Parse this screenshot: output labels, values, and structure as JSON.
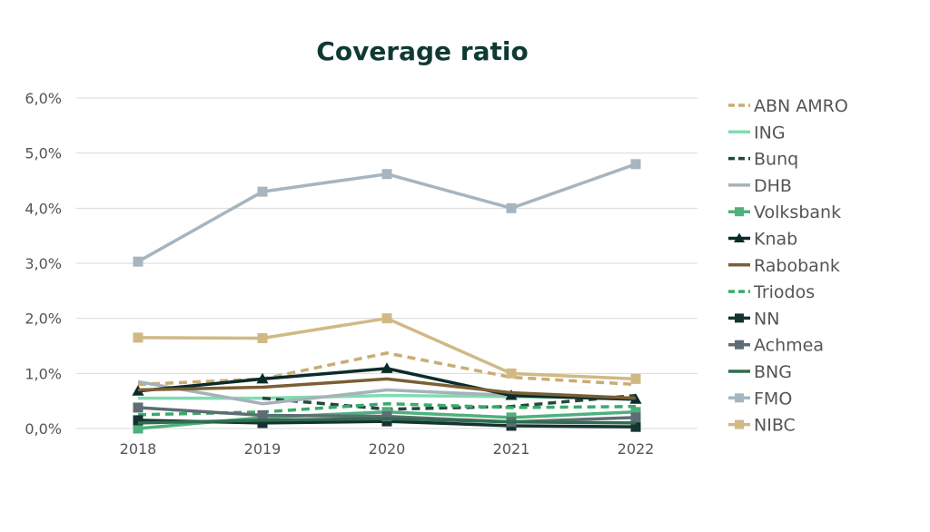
{
  "chart_data": {
    "type": "line",
    "title": "Coverage ratio",
    "xlabel": "",
    "ylabel": "",
    "categories": [
      "2018",
      "2019",
      "2020",
      "2021",
      "2022"
    ],
    "ylim": [
      0,
      6
    ],
    "yticks": [
      "0,0%",
      "1,0%",
      "2,0%",
      "3,0%",
      "4,0%",
      "5,0%",
      "6,0%"
    ],
    "grid": true,
    "legend_position": "right",
    "series": [
      {
        "name": "ABN AMRO",
        "color": "#c8ad72",
        "dash": true,
        "marker": "none",
        "values": [
          0.8,
          0.9,
          1.37,
          0.93,
          0.8
        ]
      },
      {
        "name": "ING",
        "color": "#7fdcb0",
        "dash": false,
        "marker": "none",
        "values": [
          0.55,
          0.55,
          0.6,
          0.58,
          0.55
        ]
      },
      {
        "name": "Bunq",
        "color": "#24473f",
        "dash": true,
        "marker": "none",
        "values": [
          null,
          0.55,
          0.35,
          0.4,
          0.6
        ]
      },
      {
        "name": "DHB",
        "color": "#a7b2b8",
        "dash": false,
        "marker": "none",
        "values": [
          0.85,
          0.45,
          0.7,
          0.6,
          0.55
        ]
      },
      {
        "name": "Volksbank",
        "color": "#4fb07d",
        "dash": false,
        "marker": "square",
        "values": [
          0.0,
          0.2,
          0.3,
          0.2,
          0.3
        ]
      },
      {
        "name": "Knab",
        "color": "#0b2b2a",
        "dash": false,
        "marker": "triangle",
        "values": [
          0.68,
          0.9,
          1.09,
          0.6,
          0.53
        ]
      },
      {
        "name": "Rabobank",
        "color": "#7a5f36",
        "dash": false,
        "marker": "none",
        "values": [
          0.7,
          0.75,
          0.9,
          0.65,
          0.55
        ]
      },
      {
        "name": "Triodos",
        "color": "#3aaa6a",
        "dash": true,
        "marker": "none",
        "values": [
          0.25,
          0.3,
          0.45,
          0.38,
          0.4
        ]
      },
      {
        "name": "NN",
        "color": "#163232",
        "dash": false,
        "marker": "square",
        "values": [
          0.15,
          0.1,
          0.13,
          0.05,
          0.03
        ]
      },
      {
        "name": "Achmea",
        "color": "#5f6c75",
        "dash": false,
        "marker": "square",
        "values": [
          0.38,
          0.24,
          0.22,
          0.12,
          0.2
        ]
      },
      {
        "name": "BNG",
        "color": "#2f6e4c",
        "dash": false,
        "marker": "none",
        "values": [
          0.1,
          0.15,
          0.18,
          0.12,
          0.1
        ]
      },
      {
        "name": "FMO",
        "color": "#a6b5bf",
        "dash": false,
        "marker": "square",
        "values": [
          3.03,
          4.3,
          4.62,
          4.0,
          4.8
        ]
      },
      {
        "name": "NIBC",
        "color": "#d1b986",
        "dash": false,
        "marker": "square",
        "values": [
          1.65,
          1.64,
          2.0,
          1.0,
          0.9
        ]
      }
    ]
  }
}
